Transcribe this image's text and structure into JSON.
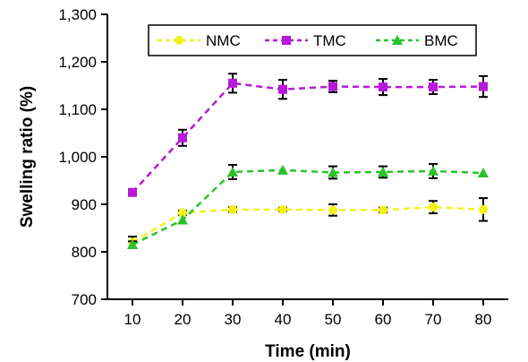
{
  "chart_data": {
    "type": "line",
    "title": "",
    "xlabel": "Time (min)",
    "ylabel": "Swelling ratio (%)",
    "x": [
      10,
      20,
      30,
      40,
      50,
      60,
      70,
      80
    ],
    "xlim": [
      5,
      85
    ],
    "ylim": [
      700,
      1300
    ],
    "x_ticks": [
      "10",
      "20",
      "30",
      "40",
      "50",
      "60",
      "70",
      "80"
    ],
    "y_ticks": [
      "700",
      "800",
      "900",
      "1,000",
      "1,100",
      "1,200",
      "1,300"
    ],
    "grid": false,
    "legend_position": "top",
    "series": [
      {
        "name": "NMC",
        "color": "#f2f21a",
        "marker": "circle",
        "values": [
          820,
          882,
          889,
          889,
          888,
          888,
          894,
          889
        ],
        "errors": [
          12,
          5,
          5,
          4,
          12,
          5,
          13,
          24
        ]
      },
      {
        "name": "TMC",
        "color": "#b818d8",
        "marker": "square",
        "values": [
          925,
          1040,
          1155,
          1142,
          1148,
          1147,
          1147,
          1148
        ],
        "errors": [
          0,
          17,
          20,
          20,
          12,
          17,
          15,
          22
        ]
      },
      {
        "name": "BMC",
        "color": "#2ac22a",
        "marker": "triangle",
        "values": [
          815,
          867,
          968,
          972,
          967,
          968,
          970,
          966
        ],
        "errors": [
          7,
          0,
          15,
          0,
          13,
          12,
          15,
          0
        ]
      }
    ]
  }
}
